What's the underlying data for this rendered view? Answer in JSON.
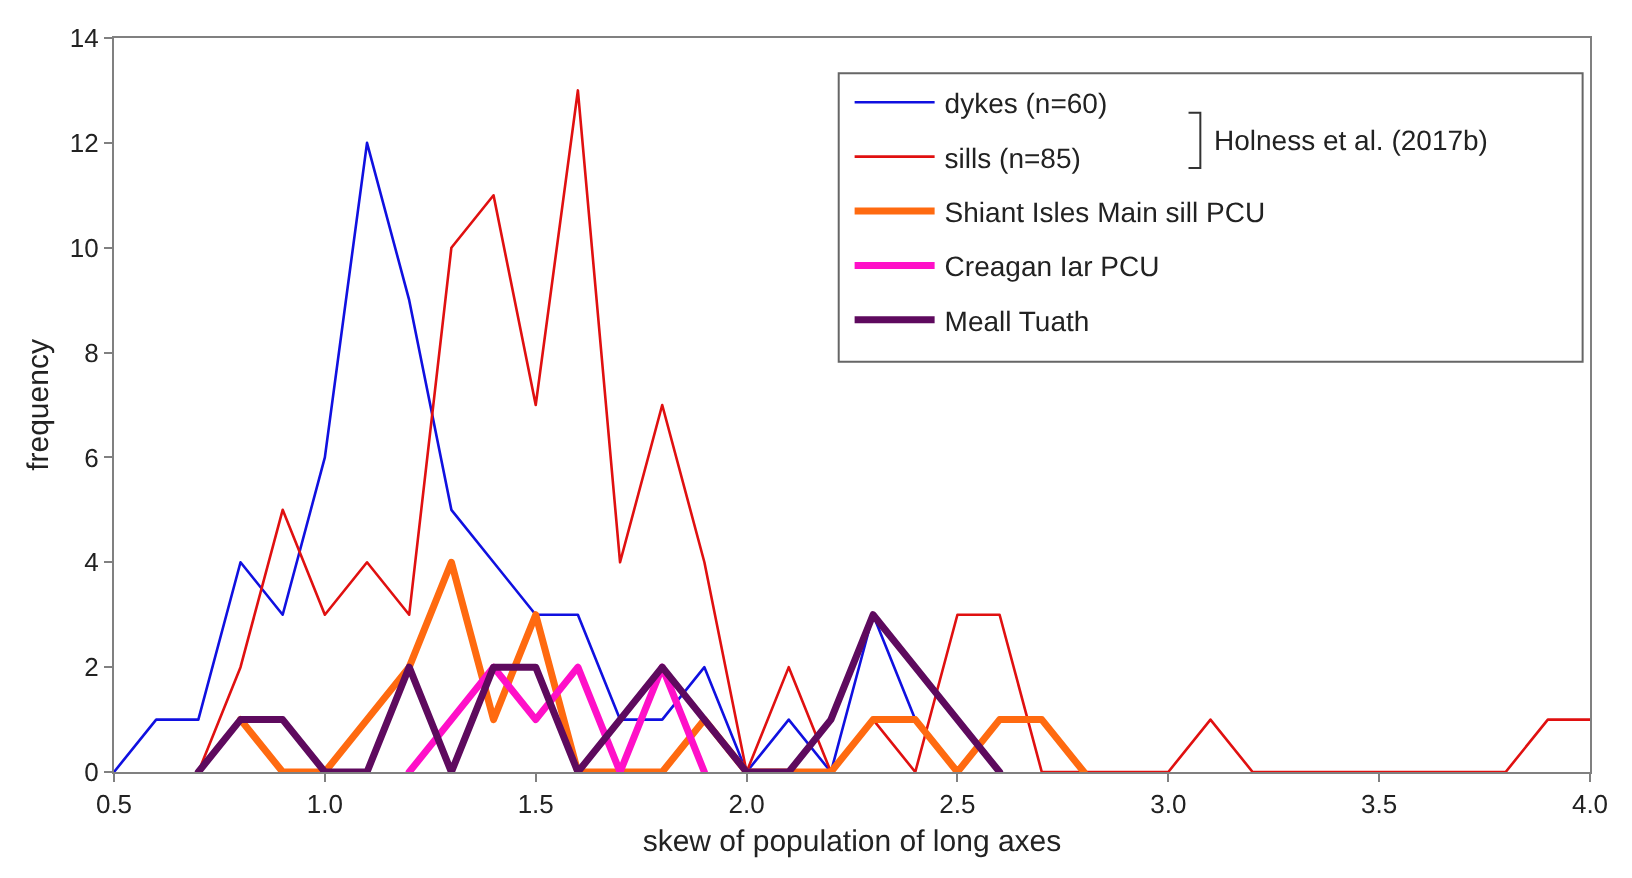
{
  "chart_data": {
    "type": "line",
    "xlabel": "skew of population of long axes",
    "ylabel": "frequency",
    "xlim": [
      0.5,
      4.0
    ],
    "xticks": [
      0.5,
      {
        "value": 1,
        "label": "1.0"
      },
      1.5,
      {
        "value": 2,
        "label": "2.0"
      },
      2.5,
      {
        "value": 3,
        "label": "3.0"
      },
      3.5,
      {
        "value": 4,
        "label": "4.0"
      }
    ],
    "ylim": [
      0,
      14
    ],
    "yticks": [
      0,
      2,
      4,
      6,
      8,
      10,
      12,
      14
    ],
    "legend": "top right",
    "marker": "none",
    "line_style": "solid",
    "annotations": [
      "Holness et al. (2017b)"
    ],
    "series": [
      {
        "name": "dykes (n=60)",
        "color": "#1010e0",
        "x": [
          0.5,
          0.6,
          0.7,
          0.8,
          0.9,
          1.0,
          1.1,
          1.2,
          1.3,
          1.4,
          1.5,
          1.6,
          1.7,
          1.8,
          1.9,
          2.0,
          2.1,
          2.2,
          2.3,
          2.4
        ],
        "values": [
          0,
          1,
          1,
          4,
          3,
          6,
          12,
          9,
          5,
          4,
          3,
          3,
          1,
          1,
          2,
          0,
          1,
          0,
          3,
          1
        ]
      },
      {
        "name": "sills (n=85)",
        "color": "#e01010",
        "x": [
          0.7,
          0.8,
          0.9,
          1.0,
          1.1,
          1.2,
          1.3,
          1.4,
          1.5,
          1.6,
          1.7,
          1.8,
          1.9,
          2.0,
          2.1,
          2.2,
          2.3,
          2.4,
          2.5,
          2.6,
          2.7,
          2.8,
          2.9,
          3.0,
          3.1,
          3.2,
          3.3,
          3.4,
          3.5,
          3.6,
          3.7,
          3.8,
          3.9,
          4.0
        ],
        "values": [
          0,
          2,
          5,
          3,
          4,
          3,
          10,
          11,
          7,
          13,
          4,
          7,
          4,
          0,
          2,
          0,
          1,
          0,
          3,
          3,
          0,
          0,
          0,
          0,
          1,
          0,
          0,
          0,
          0,
          0,
          0,
          0,
          1,
          1
        ]
      },
      {
        "name": "Shiant Isles Main sill PCU",
        "color": "#ff6a10",
        "x": [
          0.8,
          0.9,
          1.0,
          1.1,
          1.2,
          1.3,
          1.4,
          1.5,
          1.6,
          1.7,
          1.8,
          1.9,
          2.0,
          2.1,
          2.2,
          2.3,
          2.4,
          2.5,
          2.6,
          2.7,
          2.8
        ],
        "values": [
          1,
          0,
          0,
          1,
          2,
          4,
          1,
          3,
          0,
          0,
          0,
          1,
          0,
          0,
          0,
          1,
          1,
          0,
          1,
          1,
          0
        ]
      },
      {
        "name": "Creagan Iar PCU",
        "color": "#ff10c8",
        "x": [
          1.2,
          1.3,
          1.4,
          1.5,
          1.6,
          1.7,
          1.8,
          1.9
        ],
        "values": [
          0,
          1,
          2,
          1,
          2,
          0,
          2,
          0
        ]
      },
      {
        "name": "Meall Tuath",
        "color": "#5e0a5e",
        "x": [
          0.7,
          0.8,
          0.9,
          1.0,
          1.1,
          1.2,
          1.3,
          1.4,
          1.5,
          1.6,
          1.7,
          1.8,
          1.9,
          2.0,
          2.1,
          2.2,
          2.3,
          2.4,
          2.5,
          2.6
        ],
        "values": [
          0,
          1,
          1,
          0,
          0,
          2,
          0,
          2,
          2,
          0,
          1,
          2,
          1,
          0,
          0,
          1,
          3,
          2,
          1,
          0
        ]
      }
    ]
  }
}
